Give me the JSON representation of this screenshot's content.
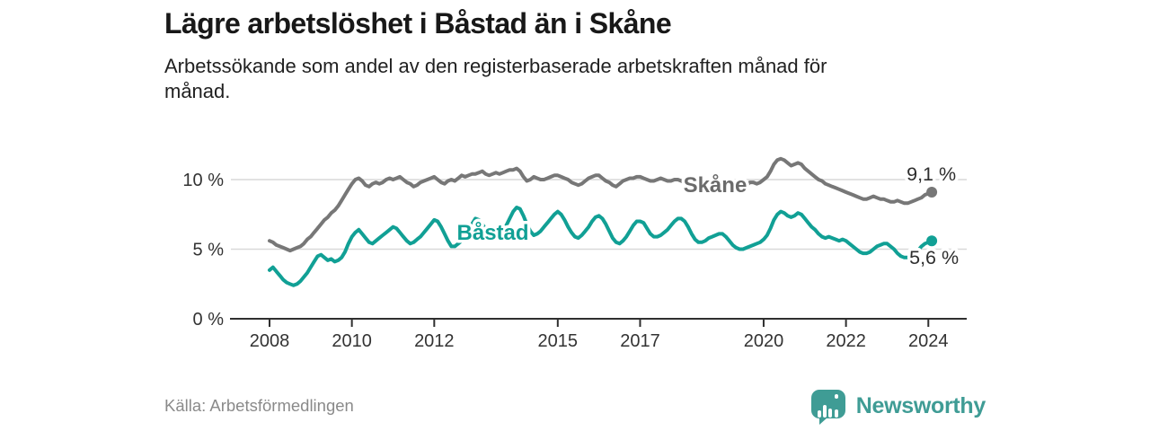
{
  "header": {
    "title": "Lägre arbetslöshet i Båstad än i Skåne",
    "subtitle": "Arbetssökande som andel av den registerbaserade arbetskraften månad för månad."
  },
  "chart_data": {
    "type": "line",
    "title": "Lägre arbetslöshet i Båstad än i Skåne",
    "subtitle": "Arbetssökande som andel av den registerbaserade arbetskraften månad för månad.",
    "x_unit": "month",
    "x_start_year": 2008,
    "x_start_month": 1,
    "x_end_year": 2024,
    "x_end_month": 2,
    "xlim": [
      2007.0,
      2025.0
    ],
    "ylim": [
      0,
      12
    ],
    "grid": "horizontal",
    "y_ticks": [
      {
        "value": 0,
        "label": "0 %"
      },
      {
        "value": 5,
        "label": "5 %"
      },
      {
        "value": 10,
        "label": "10 %"
      }
    ],
    "x_ticks": [
      {
        "value": 2008,
        "label": "2008"
      },
      {
        "value": 2010,
        "label": "2010"
      },
      {
        "value": 2012,
        "label": "2012"
      },
      {
        "value": 2015,
        "label": "2015"
      },
      {
        "value": 2017,
        "label": "2017"
      },
      {
        "value": 2020,
        "label": "2020"
      },
      {
        "value": 2022,
        "label": "2022"
      },
      {
        "value": 2024,
        "label": "2024"
      }
    ],
    "series": [
      {
        "name": "Skåne",
        "color": "#777777",
        "label_color": "#6b6b6b",
        "end_label": "9,1 %",
        "end_value": 9.1,
        "label_anchor": {
          "year": 2018.05,
          "value": 9.1
        },
        "values": [
          5.6,
          5.5,
          5.3,
          5.2,
          5.1,
          5.0,
          4.9,
          5.0,
          5.1,
          5.2,
          5.4,
          5.7,
          5.9,
          6.2,
          6.5,
          6.8,
          7.1,
          7.3,
          7.6,
          7.8,
          8.1,
          8.5,
          8.9,
          9.3,
          9.7,
          10.0,
          10.1,
          9.9,
          9.6,
          9.5,
          9.7,
          9.8,
          9.7,
          9.8,
          10.0,
          10.1,
          10.0,
          10.1,
          10.2,
          10.0,
          9.8,
          9.7,
          9.5,
          9.6,
          9.8,
          9.9,
          10.0,
          10.1,
          10.2,
          10.0,
          9.8,
          9.7,
          9.9,
          10.0,
          9.9,
          10.1,
          10.3,
          10.2,
          10.3,
          10.4,
          10.4,
          10.5,
          10.6,
          10.4,
          10.3,
          10.4,
          10.5,
          10.4,
          10.5,
          10.6,
          10.7,
          10.7,
          10.8,
          10.6,
          10.2,
          9.9,
          10.0,
          10.2,
          10.1,
          10.0,
          10.0,
          10.1,
          10.2,
          10.3,
          10.3,
          10.2,
          10.1,
          10.0,
          9.8,
          9.7,
          9.6,
          9.7,
          9.9,
          10.1,
          10.2,
          10.3,
          10.3,
          10.1,
          9.9,
          9.8,
          9.6,
          9.5,
          9.7,
          9.9,
          10.0,
          10.1,
          10.1,
          10.2,
          10.2,
          10.1,
          10.0,
          9.9,
          9.9,
          10.0,
          10.1,
          10.0,
          9.9,
          9.9,
          10.0,
          10.0,
          9.9,
          9.8,
          9.7,
          9.6,
          9.5,
          9.4,
          9.4,
          9.5,
          9.4,
          9.4,
          9.3,
          9.4,
          9.3,
          9.2,
          9.2,
          9.3,
          9.3,
          9.4,
          9.5,
          9.6,
          9.8,
          9.8,
          9.7,
          9.8,
          10.0,
          10.2,
          10.6,
          11.1,
          11.4,
          11.5,
          11.4,
          11.2,
          11.0,
          11.1,
          11.2,
          11.1,
          10.8,
          10.6,
          10.4,
          10.2,
          10.0,
          9.9,
          9.7,
          9.6,
          9.5,
          9.4,
          9.3,
          9.2,
          9.1,
          9.0,
          8.9,
          8.8,
          8.7,
          8.6,
          8.6,
          8.7,
          8.8,
          8.7,
          8.6,
          8.6,
          8.5,
          8.4,
          8.4,
          8.5,
          8.4,
          8.3,
          8.3,
          8.4,
          8.5,
          8.6,
          8.7,
          8.9,
          9.0,
          9.1
        ]
      },
      {
        "name": "Båstad",
        "color": "#11a095",
        "label_color": "#11a095",
        "end_label": "5,6 %",
        "end_value": 5.6,
        "label_anchor": {
          "year": 2012.55,
          "value": 5.68
        },
        "values": [
          3.5,
          3.7,
          3.4,
          3.1,
          2.8,
          2.6,
          2.5,
          2.4,
          2.5,
          2.7,
          3.0,
          3.3,
          3.7,
          4.1,
          4.5,
          4.6,
          4.4,
          4.2,
          4.3,
          4.1,
          4.2,
          4.4,
          4.8,
          5.4,
          5.9,
          6.2,
          6.4,
          6.1,
          5.8,
          5.5,
          5.4,
          5.6,
          5.8,
          6.0,
          6.2,
          6.4,
          6.6,
          6.5,
          6.2,
          5.9,
          5.6,
          5.4,
          5.5,
          5.7,
          5.9,
          6.2,
          6.5,
          6.8,
          7.1,
          7.0,
          6.6,
          6.1,
          5.6,
          5.2,
          5.2,
          5.4,
          5.6,
          5.9,
          6.3,
          6.8,
          7.2,
          7.1,
          6.8,
          6.4,
          6.1,
          5.9,
          5.8,
          6.0,
          6.3,
          6.7,
          7.2,
          7.7,
          8.0,
          7.9,
          7.4,
          6.8,
          6.3,
          6.0,
          6.1,
          6.3,
          6.6,
          6.9,
          7.2,
          7.5,
          7.7,
          7.5,
          7.1,
          6.6,
          6.2,
          5.9,
          5.8,
          6.0,
          6.3,
          6.6,
          7.0,
          7.3,
          7.4,
          7.2,
          6.8,
          6.3,
          5.8,
          5.5,
          5.4,
          5.6,
          5.9,
          6.3,
          6.7,
          7.0,
          7.0,
          6.9,
          6.5,
          6.1,
          5.9,
          5.9,
          6.0,
          6.2,
          6.4,
          6.7,
          7.0,
          7.2,
          7.2,
          7.0,
          6.6,
          6.1,
          5.7,
          5.5,
          5.5,
          5.6,
          5.8,
          5.9,
          6.0,
          6.1,
          6.1,
          5.9,
          5.6,
          5.3,
          5.1,
          5.0,
          5.0,
          5.1,
          5.2,
          5.3,
          5.4,
          5.5,
          5.7,
          6.0,
          6.5,
          7.1,
          7.5,
          7.7,
          7.6,
          7.4,
          7.3,
          7.4,
          7.6,
          7.5,
          7.2,
          6.9,
          6.6,
          6.4,
          6.1,
          5.9,
          5.8,
          5.9,
          5.8,
          5.7,
          5.6,
          5.7,
          5.6,
          5.4,
          5.2,
          5.0,
          4.8,
          4.7,
          4.7,
          4.8,
          5.0,
          5.2,
          5.3,
          5.4,
          5.4,
          5.2,
          5.0,
          4.7,
          4.5,
          4.4,
          4.4,
          4.5,
          4.7,
          4.9,
          5.2,
          5.4,
          5.5,
          5.6
        ]
      }
    ],
    "colors": {
      "axis": "#2f2f2f",
      "grid": "#d9d9d9",
      "tick_text": "#333333",
      "end_label_text": "#2e2e2e"
    }
  },
  "footer": {
    "source": "Källa: Arbetsförmedlingen",
    "logo_text": "Newsworthy",
    "logo_color": "#3f9c95",
    "logo_icon": "speech-bubble-bar-chart-exclamation"
  }
}
